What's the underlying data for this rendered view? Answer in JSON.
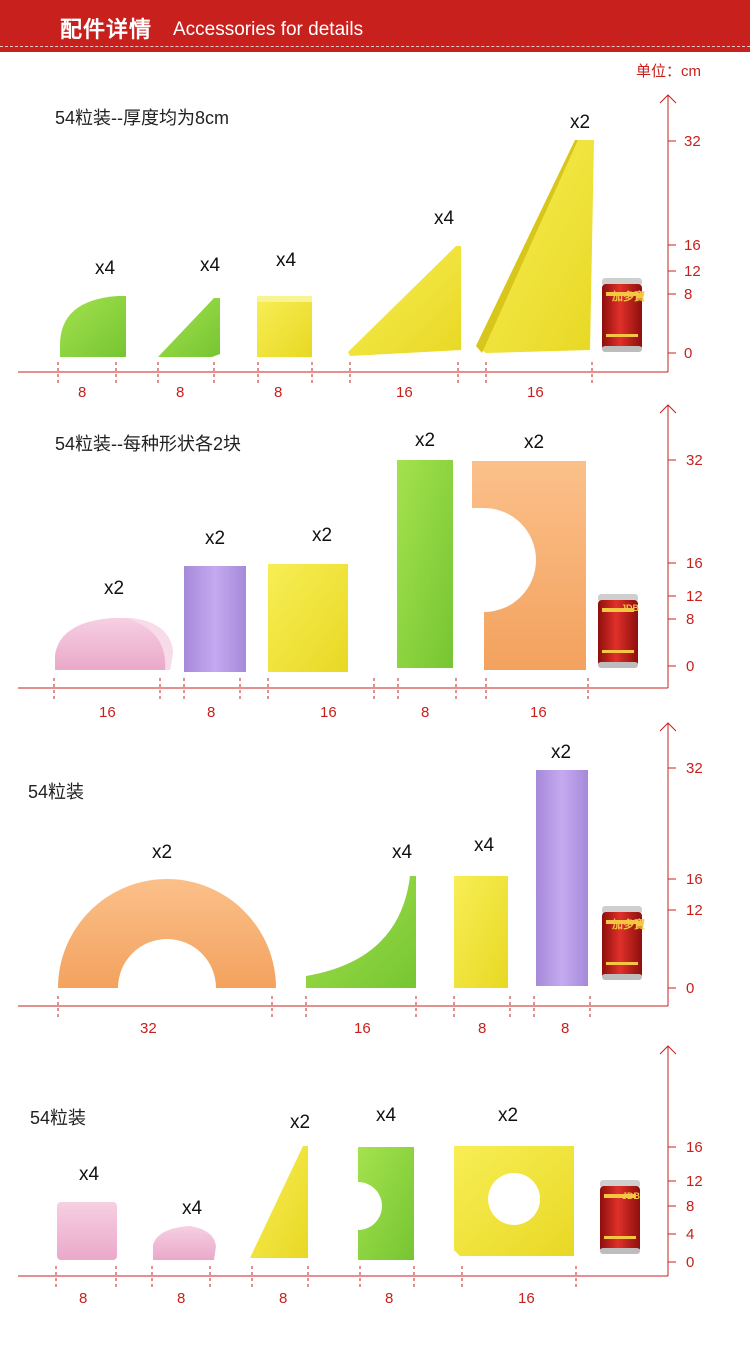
{
  "header": {
    "title_zh": "配件详情",
    "title_en": "Accessories for details"
  },
  "unit_label": "单位：cm",
  "colors": {
    "accent": "#c8201d",
    "green": "#8fd63f",
    "yellow": "#f3e63a",
    "purple": "#b79ae6",
    "pink": "#f2bcd6",
    "orange": "#f8b273"
  },
  "sections": [
    {
      "title": "54粒装--厚度均为8cm",
      "quantities": [
        "x4",
        "x4",
        "x4",
        "x4",
        "x2"
      ],
      "dimensions": [
        "8",
        "8",
        "8",
        "16",
        "16"
      ],
      "scale_ticks": [
        "32",
        "16",
        "12",
        "8",
        "0"
      ]
    },
    {
      "title": "54粒装--每种形状各2块",
      "quantities": [
        "x2",
        "x2",
        "x2",
        "x2",
        "x2"
      ],
      "dimensions": [
        "16",
        "8",
        "16",
        "8",
        "16"
      ],
      "scale_ticks": [
        "32",
        "16",
        "12",
        "8",
        "0"
      ]
    },
    {
      "title": "54粒装",
      "quantities": [
        "x2",
        "x4",
        "x4",
        "x2"
      ],
      "dimensions": [
        "32",
        "16",
        "8",
        "8"
      ],
      "scale_ticks": [
        "32",
        "16",
        "12",
        "0"
      ]
    },
    {
      "title": "54粒装",
      "quantities": [
        "x4",
        "x4",
        "x2",
        "x4",
        "x2"
      ],
      "dimensions": [
        "8",
        "8",
        "8",
        "8",
        "16"
      ],
      "scale_ticks": [
        "16",
        "12",
        "8",
        "4",
        "0"
      ]
    }
  ],
  "can_labels": [
    "加多寶",
    "JDB"
  ]
}
